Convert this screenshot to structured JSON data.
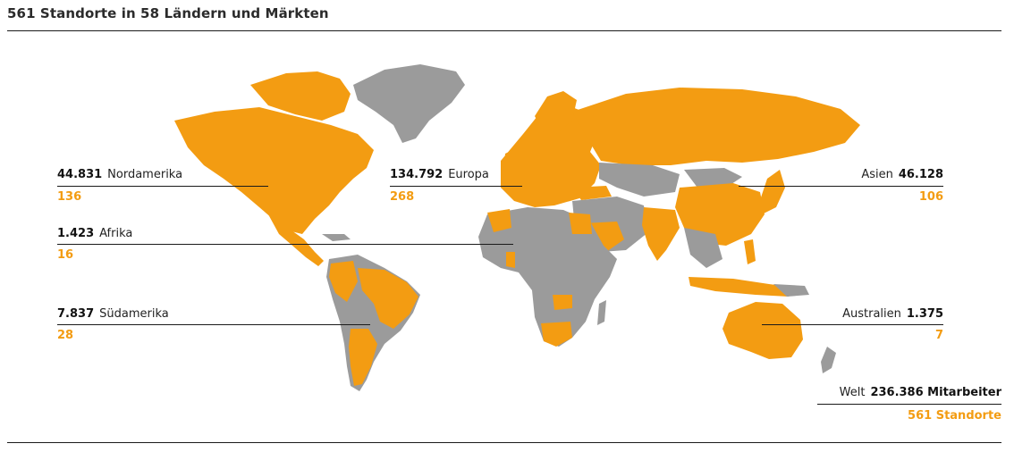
{
  "title": "561 Standorte in 58 Ländern und Märkten",
  "colors": {
    "accent": "#f39c12",
    "land_gray": "#9b9b9b",
    "text": "#1a1a1a"
  },
  "regions": {
    "nordamerika": {
      "value": "44.831",
      "name": "Nordamerika",
      "count": "136"
    },
    "afrika": {
      "value": "1.423",
      "name": "Afrika",
      "count": "16"
    },
    "suedamerika": {
      "value": "7.837",
      "name": "Südamerika",
      "count": "28"
    },
    "europa": {
      "value": "134.792",
      "name": "Europa",
      "count": "268"
    },
    "asien": {
      "value": "46.128",
      "name": "Asien",
      "count": "106"
    },
    "australien": {
      "value": "1.375",
      "name": "Australien",
      "count": "7"
    }
  },
  "world": {
    "name": "Welt",
    "value": "236.386 Mitarbeiter",
    "count": "561 Standorte"
  }
}
